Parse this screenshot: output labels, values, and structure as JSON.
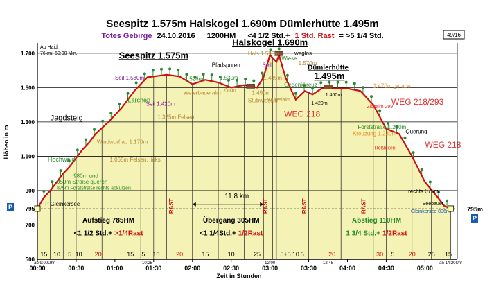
{
  "chart_data": {
    "type": "area",
    "title": "Seespitz 1.575m Halskogel 1.690m Dümlerhütte 1.495m",
    "subtitle": {
      "group": "Totes Gebirge",
      "date": "24.10.2016",
      "hm": "1200HM",
      "time_a": "<4 1/2 Std.+",
      "rest": "1 Std. Rast",
      "time_b": "= >5 1/4 Std."
    },
    "page_badge": "49/16",
    "info_box": [
      "Ab Haid:",
      "76km; 50:00 Min."
    ],
    "xlabel": "Zeit in Stunden",
    "ylabel": "Höhen in m",
    "xlim": [
      0,
      325
    ],
    "ylim": [
      500,
      1760
    ],
    "yticks": [
      500,
      700,
      900,
      1100,
      1300,
      1500,
      1700
    ],
    "ytick_labels": [
      "500",
      "700",
      "900",
      "1.100",
      "1.300",
      "1.500",
      "1.700"
    ],
    "extra_ytick": {
      "value": 795,
      "label": "795"
    },
    "xticks": [
      0,
      30,
      60,
      90,
      120,
      150,
      180,
      210,
      240,
      270,
      300
    ],
    "xtick_labels": [
      "00:00",
      "00:30",
      "01:00",
      "01:30",
      "02:00",
      "02:30",
      "03:00",
      "03:30",
      "04:00",
      "04:30",
      "05:00"
    ],
    "profile": {
      "x": [
        0,
        5,
        10,
        15,
        20,
        25,
        30,
        35,
        40,
        45,
        55,
        65,
        75,
        85,
        100,
        110,
        120,
        130,
        140,
        150,
        160,
        170,
        175,
        180,
        185,
        187,
        192,
        195,
        200,
        207,
        213,
        220,
        230,
        240,
        250,
        260,
        270,
        280,
        290,
        300,
        310,
        315,
        320
      ],
      "y": [
        795,
        860,
        900,
        950,
        1000,
        1040,
        1090,
        1140,
        1180,
        1230,
        1300,
        1380,
        1480,
        1560,
        1575,
        1565,
        1520,
        1545,
        1530,
        1500,
        1515,
        1500,
        1560,
        1690,
        1650,
        1690,
        1560,
        1510,
        1430,
        1480,
        1460,
        1495,
        1495,
        1495,
        1480,
        1400,
        1260,
        1230,
        1100,
        950,
        860,
        810,
        795
      ]
    },
    "segment_lines": [
      0,
      10,
      20,
      30,
      40,
      50,
      80,
      90,
      100,
      120,
      140,
      160,
      175,
      180,
      182,
      185,
      210,
      235,
      260,
      270,
      290,
      305,
      320
    ],
    "segment_minutes": [
      {
        "x": 5,
        "label": "15"
      },
      {
        "x": 15,
        "label": "10"
      },
      {
        "x": 25,
        "label": "5"
      },
      {
        "x": 32,
        "label": "10"
      },
      {
        "x": 47,
        "label": "20"
      },
      {
        "x": 72,
        "label": "15"
      },
      {
        "x": 82,
        "label": "5"
      },
      {
        "x": 92,
        "label": "10"
      },
      {
        "x": 110,
        "label": "20"
      },
      {
        "x": 130,
        "label": "15"
      },
      {
        "x": 150,
        "label": "10"
      },
      {
        "x": 170,
        "label": "25"
      },
      {
        "x": 192,
        "label": "5+5"
      },
      {
        "x": 200,
        "label": "10"
      },
      {
        "x": 205,
        "label": "5"
      },
      {
        "x": 228,
        "label": "20"
      },
      {
        "x": 265,
        "label": "30"
      },
      {
        "x": 275,
        "label": "5"
      },
      {
        "x": 290,
        "label": "20"
      },
      {
        "x": 305,
        "label": "25"
      },
      {
        "x": 318,
        "label": "15"
      }
    ],
    "rast_bands": [
      {
        "x": 105,
        "label": "RAST",
        "color": "#d01010"
      },
      {
        "x": 208,
        "label": "RAST",
        "color": "#d01010"
      },
      {
        "x": 178,
        "label": "RAST",
        "color": "#d01010"
      },
      {
        "x": 254,
        "label": "RAST",
        "color": "#d01010"
      }
    ],
    "peak_labels": [
      {
        "x": 90,
        "y": 1670,
        "text": "Seespitz 1.575m"
      },
      {
        "x": 180,
        "y": 1745,
        "text": "Halskogel 1.690m"
      },
      {
        "x": 225,
        "y": 1605,
        "text": "Dümlerhütte"
      },
      {
        "x": 226,
        "y": 1550,
        "text": "1.495m"
      }
    ],
    "annotations": [
      {
        "x": 10,
        "y": 1310,
        "text": "Jagdsteig",
        "color": "#000000",
        "size": 11
      },
      {
        "x": 8,
        "y": 1070,
        "text": "Hochwald",
        "color": "#2a8a2a",
        "size": 9
      },
      {
        "x": 60,
        "y": 1545,
        "text": "Seil 1.530m",
        "color": "#7a1a9a",
        "size": 8
      },
      {
        "x": 70,
        "y": 1415,
        "text": "Lärchen",
        "color": "#2a8a2a",
        "size": 9
      },
      {
        "x": 84,
        "y": 1395,
        "text": "Seil 1.420m",
        "color": "#7a1a9a",
        "size": 8
      },
      {
        "x": 93,
        "y": 1318,
        "text": "1.325m Felsen",
        "color": "#b58a3a",
        "size": 8
      },
      {
        "x": 46,
        "y": 1172,
        "text": "Windwurf ab 1.170m",
        "color": "#b58a3a",
        "size": 8
      },
      {
        "x": 56,
        "y": 1070,
        "text": "1.065m Felsen, links",
        "color": "#b58a3a",
        "size": 8
      },
      {
        "x": 28,
        "y": 975,
        "text": "980m und",
        "color": "#2a8a2a",
        "size": 8
      },
      {
        "x": 15,
        "y": 940,
        "text": "950m Straße queren",
        "color": "#2a8a2a",
        "size": 8
      },
      {
        "x": 15,
        "y": 905,
        "text": "875m Forststraße rechts abkürzen",
        "color": "#2a8a2a",
        "size": 7
      },
      {
        "x": 6,
        "y": 810,
        "text": "P Gleinkersee",
        "color": "#000000",
        "size": 8
      },
      {
        "x": 114,
        "y": 1540,
        "text": "1.526m",
        "color": "#2a8a2a",
        "size": 8
      },
      {
        "x": 113,
        "y": 1460,
        "text": "Weierbaueralm",
        "color": "#b58a3a",
        "size": 8
      },
      {
        "x": 135,
        "y": 1620,
        "text": "Pfadspuren",
        "color": "#000000",
        "size": 8
      },
      {
        "x": 141,
        "y": 1545,
        "text": "1.530m",
        "color": "#2a8a2a",
        "size": 8
      },
      {
        "x": 144,
        "y": 1475,
        "text": "Zaun",
        "color": "#b58a3a",
        "size": 8
      },
      {
        "x": 166,
        "y": 1460,
        "text": "1.496m",
        "color": "#b58a3a",
        "size": 8
      },
      {
        "x": 163,
        "y": 1415,
        "text": "Stubwiesalm",
        "color": "#b58a3a",
        "size": 8
      },
      {
        "x": 163,
        "y": 1688,
        "text": "Hals 1.595m",
        "color": "#b58a3a",
        "size": 8
      },
      {
        "x": 174,
        "y": 1620,
        "text": "Seil",
        "color": "#7a1a9a",
        "size": 8
      },
      {
        "x": 175,
        "y": 1545,
        "text": "1.485m",
        "color": "#b58a3a",
        "size": 8
      },
      {
        "x": 178,
        "y": 1420,
        "text": "Wurzelalm",
        "color": "#b58a3a",
        "size": 7
      },
      {
        "x": 189,
        "y": 1660,
        "text": "Wiese",
        "color": "#2a8a2a",
        "size": 8
      },
      {
        "x": 199,
        "y": 1690,
        "text": "weglos",
        "color": "#000000",
        "size": 8
      },
      {
        "x": 202,
        "y": 1630,
        "text": "1.570m",
        "color": "#b58a3a",
        "size": 8
      },
      {
        "x": 191,
        "y": 1505,
        "text": "Gedenkkreuz",
        "color": "#2a8a2a",
        "size": 8
      },
      {
        "x": 212,
        "y": 1400,
        "text": "1.420m",
        "color": "#000000",
        "size": 7
      },
      {
        "x": 223,
        "y": 1450,
        "text": "1.460m",
        "color": "#000000",
        "size": 7
      },
      {
        "x": 191,
        "y": 1330,
        "text": "WEG 218",
        "color": "#e03030",
        "size": 12
      },
      {
        "x": 255,
        "y": 1380,
        "text": "Zickalm 299",
        "color": "#e03030",
        "size": 7
      },
      {
        "x": 260,
        "y": 1500,
        "text": "1.470m gerade",
        "color": "#e8902a",
        "size": 8
      },
      {
        "x": 274,
        "y": 1400,
        "text": "WEG 218/293",
        "color": "#e03030",
        "size": 12
      },
      {
        "x": 248,
        "y": 1260,
        "text": "Forststraße 1.260m",
        "color": "#2a8a2a",
        "size": 8
      },
      {
        "x": 244,
        "y": 1220,
        "text": "Kreuzung 1.230m",
        "color": "#e8902a",
        "size": 8
      },
      {
        "x": 261,
        "y": 1140,
        "text": "Rößleiten",
        "color": "#e03030",
        "size": 7
      },
      {
        "x": 285,
        "y": 1232,
        "text": "Querung",
        "color": "#000000",
        "size": 8
      },
      {
        "x": 300,
        "y": 1150,
        "text": "WEG 218",
        "color": "#e03030",
        "size": 12
      },
      {
        "x": 287,
        "y": 885,
        "text": "rechts 875m",
        "color": "#000000",
        "size": 8
      },
      {
        "x": 298,
        "y": 815,
        "text": "Seebauer",
        "color": "#000000",
        "size": 7
      },
      {
        "x": 289,
        "y": 770,
        "text": "Gleinkersee 806m",
        "color": "#1a5aaa",
        "size": 7
      },
      {
        "x": 145,
        "y": 855,
        "text": "11,8 km",
        "color": "#000000",
        "size": 10
      }
    ],
    "section_labels": [
      {
        "x1": 10,
        "x2": 100,
        "title": "Aufstieg 785HM",
        "time": "<1 1/2 Std.+",
        "rest": ">1/4Rast",
        "title_color": "#000000"
      },
      {
        "x1": 120,
        "x2": 180,
        "title": "Übergang 305HM",
        "time": "<1 1/4Std.+",
        "rest": "1/2Rast",
        "title_color": "#000000"
      },
      {
        "x1": 225,
        "x2": 300,
        "title": "Abstieg 110HM",
        "time": "1 3/4 Std.+",
        "rest": "1/2Rast",
        "title_color": "#2a8a2a"
      }
    ],
    "time_marks": [
      {
        "x": 0,
        "text": "ab 9:00Uhr"
      },
      {
        "x": 85,
        "text": "10:25"
      },
      {
        "x": 180,
        "text": "12:00"
      },
      {
        "x": 225,
        "text": "12:45"
      },
      {
        "x": 320,
        "text": "an 14:20Uhr"
      }
    ],
    "parking": {
      "label": "P",
      "elevation_label": "795m"
    },
    "colors": {
      "profile": "#cc1010",
      "fill": "#f4f2b4",
      "grid": "#111111",
      "tree": "#2a8a2a",
      "rast": "#d01010"
    }
  }
}
